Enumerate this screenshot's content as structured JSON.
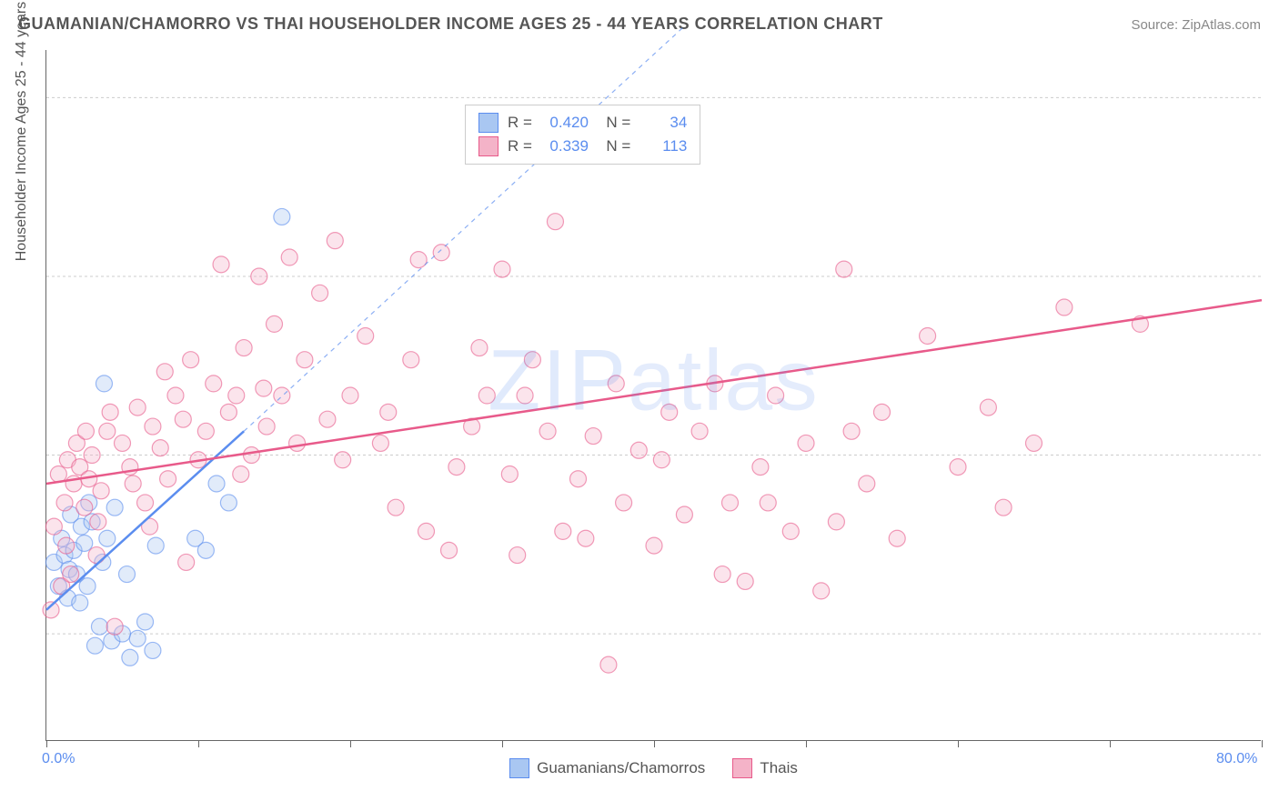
{
  "title": "GUAMANIAN/CHAMORRO VS THAI HOUSEHOLDER INCOME AGES 25 - 44 YEARS CORRELATION CHART",
  "source": "Source: ZipAtlas.com",
  "y_axis_label": "Householder Income Ages 25 - 44 years",
  "watermark": "ZIPatlas",
  "chart": {
    "type": "scatter",
    "xlim": [
      0,
      80
    ],
    "ylim": [
      30000,
      320000
    ],
    "x_ticks": [
      0,
      10,
      20,
      30,
      40,
      50,
      60,
      70,
      80
    ],
    "x_tick_labels": {
      "0": "0.0%",
      "80": "80.0%"
    },
    "y_ticks": [
      75000,
      150000,
      225000,
      300000
    ],
    "y_tick_format": "$#,###",
    "grid_color": "#cccccc",
    "background_color": "#ffffff",
    "axis_color": "#666666",
    "tick_label_color": "#5b8def",
    "label_color": "#555555",
    "title_fontsize": 18,
    "label_fontsize": 16,
    "tick_fontsize": 16,
    "marker_radius": 9,
    "marker_opacity": 0.35,
    "line_width": 2.5
  },
  "series": [
    {
      "name": "Guamanians/Chamorros",
      "color": "#5b8def",
      "fill": "#a9c7f2",
      "R": "0.420",
      "N": "34",
      "trend": {
        "x1": 0,
        "y1": 85000,
        "x2": 13,
        "y2": 160000,
        "dash_to_x": 42,
        "dash_to_y": 330000
      },
      "points": [
        [
          0.5,
          105000
        ],
        [
          0.8,
          95000
        ],
        [
          1.0,
          115000
        ],
        [
          1.2,
          108000
        ],
        [
          1.4,
          90000
        ],
        [
          1.5,
          102000
        ],
        [
          1.6,
          125000
        ],
        [
          1.8,
          110000
        ],
        [
          2.0,
          100000
        ],
        [
          2.2,
          88000
        ],
        [
          2.3,
          120000
        ],
        [
          2.5,
          113000
        ],
        [
          2.7,
          95000
        ],
        [
          2.8,
          130000
        ],
        [
          3.0,
          122000
        ],
        [
          3.2,
          70000
        ],
        [
          3.5,
          78000
        ],
        [
          3.7,
          105000
        ],
        [
          3.8,
          180000
        ],
        [
          4.0,
          115000
        ],
        [
          4.3,
          72000
        ],
        [
          5.0,
          75000
        ],
        [
          5.5,
          65000
        ],
        [
          6.0,
          73000
        ],
        [
          6.5,
          80000
        ],
        [
          7.0,
          68000
        ],
        [
          7.2,
          112000
        ],
        [
          9.8,
          115000
        ],
        [
          10.5,
          110000
        ],
        [
          11.2,
          138000
        ],
        [
          12.0,
          130000
        ],
        [
          15.5,
          250000
        ],
        [
          4.5,
          128000
        ],
        [
          5.3,
          100000
        ]
      ]
    },
    {
      "name": "Thais",
      "color": "#e85a8a",
      "fill": "#f4b3c8",
      "R": "0.339",
      "N": "113",
      "trend": {
        "x1": 0,
        "y1": 138000,
        "x2": 80,
        "y2": 215000
      },
      "points": [
        [
          0.3,
          85000
        ],
        [
          0.5,
          120000
        ],
        [
          0.8,
          142000
        ],
        [
          1.0,
          95000
        ],
        [
          1.2,
          130000
        ],
        [
          1.4,
          148000
        ],
        [
          1.6,
          100000
        ],
        [
          1.8,
          138000
        ],
        [
          2.0,
          155000
        ],
        [
          2.2,
          145000
        ],
        [
          2.5,
          128000
        ],
        [
          2.8,
          140000
        ],
        [
          3.0,
          150000
        ],
        [
          3.3,
          108000
        ],
        [
          3.6,
          135000
        ],
        [
          4.0,
          160000
        ],
        [
          4.5,
          78000
        ],
        [
          5.0,
          155000
        ],
        [
          5.5,
          145000
        ],
        [
          6.0,
          170000
        ],
        [
          6.5,
          130000
        ],
        [
          7.0,
          162000
        ],
        [
          7.5,
          153000
        ],
        [
          8.0,
          140000
        ],
        [
          8.5,
          175000
        ],
        [
          9.0,
          165000
        ],
        [
          9.5,
          190000
        ],
        [
          10.0,
          148000
        ],
        [
          10.5,
          160000
        ],
        [
          11.0,
          180000
        ],
        [
          11.5,
          230000
        ],
        [
          12.0,
          168000
        ],
        [
          12.5,
          175000
        ],
        [
          13.0,
          195000
        ],
        [
          13.5,
          150000
        ],
        [
          14.0,
          225000
        ],
        [
          14.5,
          162000
        ],
        [
          15.0,
          205000
        ],
        [
          15.5,
          175000
        ],
        [
          16.0,
          233000
        ],
        [
          16.5,
          155000
        ],
        [
          17.0,
          190000
        ],
        [
          18.0,
          218000
        ],
        [
          18.5,
          165000
        ],
        [
          19.0,
          240000
        ],
        [
          20.0,
          175000
        ],
        [
          21.0,
          200000
        ],
        [
          22.0,
          155000
        ],
        [
          23.0,
          128000
        ],
        [
          24.0,
          190000
        ],
        [
          24.5,
          232000
        ],
        [
          25.0,
          118000
        ],
        [
          26.0,
          235000
        ],
        [
          27.0,
          145000
        ],
        [
          28.0,
          162000
        ],
        [
          29.0,
          175000
        ],
        [
          30.0,
          228000
        ],
        [
          30.5,
          142000
        ],
        [
          31.0,
          108000
        ],
        [
          32.0,
          190000
        ],
        [
          33.0,
          160000
        ],
        [
          33.5,
          248000
        ],
        [
          34.0,
          118000
        ],
        [
          35.0,
          140000
        ],
        [
          36.0,
          158000
        ],
        [
          37.0,
          62000
        ],
        [
          37.5,
          180000
        ],
        [
          38.0,
          130000
        ],
        [
          39.0,
          152000
        ],
        [
          40.0,
          112000
        ],
        [
          41.0,
          168000
        ],
        [
          42.0,
          125000
        ],
        [
          43.0,
          160000
        ],
        [
          44.0,
          180000
        ],
        [
          45.0,
          130000
        ],
        [
          46.0,
          97000
        ],
        [
          47.0,
          145000
        ],
        [
          48.0,
          175000
        ],
        [
          49.0,
          118000
        ],
        [
          50.0,
          155000
        ],
        [
          51.0,
          93000
        ],
        [
          52.0,
          122000
        ],
        [
          52.5,
          228000
        ],
        [
          53.0,
          160000
        ],
        [
          54.0,
          138000
        ],
        [
          56.0,
          115000
        ],
        [
          58.0,
          200000
        ],
        [
          60.0,
          145000
        ],
        [
          62.0,
          170000
        ],
        [
          63.0,
          128000
        ],
        [
          65.0,
          155000
        ],
        [
          67.0,
          212000
        ],
        [
          72.0,
          205000
        ],
        [
          9.2,
          105000
        ],
        [
          6.8,
          120000
        ],
        [
          4.2,
          168000
        ],
        [
          3.4,
          122000
        ],
        [
          7.8,
          185000
        ],
        [
          12.8,
          142000
        ],
        [
          14.3,
          178000
        ],
        [
          19.5,
          148000
        ],
        [
          22.5,
          168000
        ],
        [
          26.5,
          110000
        ],
        [
          28.5,
          195000
        ],
        [
          31.5,
          175000
        ],
        [
          35.5,
          115000
        ],
        [
          40.5,
          148000
        ],
        [
          44.5,
          100000
        ],
        [
          47.5,
          130000
        ],
        [
          55.0,
          168000
        ],
        [
          1.3,
          112000
        ],
        [
          2.6,
          160000
        ],
        [
          5.7,
          138000
        ]
      ]
    }
  ],
  "stat_legend": {
    "rows": [
      {
        "swatch_fill": "#a9c7f2",
        "swatch_border": "#5b8def",
        "R": "0.420",
        "N": "34"
      },
      {
        "swatch_fill": "#f4b3c8",
        "swatch_border": "#e85a8a",
        "R": "0.339",
        "N": "113"
      }
    ]
  },
  "bottom_legend": [
    {
      "swatch_fill": "#a9c7f2",
      "swatch_border": "#5b8def",
      "label": "Guamanians/Chamorros"
    },
    {
      "swatch_fill": "#f4b3c8",
      "swatch_border": "#e85a8a",
      "label": "Thais"
    }
  ]
}
